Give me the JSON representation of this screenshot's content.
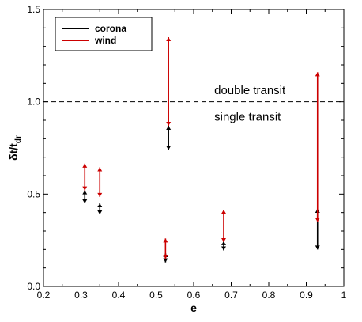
{
  "chart_data": {
    "type": "scatter",
    "title": "",
    "xlabel": "e",
    "ylabel_main": "δt/t",
    "ylabel_sub": "dr",
    "xlim": [
      0.2,
      1.0
    ],
    "ylim": [
      0.0,
      1.5
    ],
    "x_ticks": [
      0.2,
      0.3,
      0.4,
      0.5,
      0.6,
      0.7,
      0.8,
      0.9,
      1.0
    ],
    "x_tick_labels": [
      "0.2",
      "0.3",
      "0.4",
      "0.5",
      "0.6",
      "0.7",
      "0.8",
      "0.9",
      "1"
    ],
    "y_ticks": [
      0.0,
      0.5,
      1.0,
      1.5
    ],
    "y_tick_labels": [
      "0.0",
      "0.5",
      "1.0",
      "1.5"
    ],
    "grid": false,
    "legend_position": "top-left",
    "reference_line": {
      "y": 1.0,
      "style": "dashed"
    },
    "annotations": [
      {
        "text": "double transit",
        "x": 0.655,
        "y": 1.05
      },
      {
        "text": "single transit",
        "x": 0.655,
        "y": 0.95
      }
    ],
    "series": [
      {
        "name": "corona",
        "color": "#000000",
        "ranges": [
          {
            "x": 0.31,
            "low": 0.45,
            "high": 0.52
          },
          {
            "x": 0.35,
            "low": 0.39,
            "high": 0.45
          },
          {
            "x": 0.525,
            "low": 0.13,
            "high": 0.18
          },
          {
            "x": 0.533,
            "low": 0.74,
            "high": 0.87
          },
          {
            "x": 0.68,
            "low": 0.195,
            "high": 0.245
          },
          {
            "x": 0.93,
            "low": 0.2,
            "high": 0.42
          }
        ]
      },
      {
        "name": "wind",
        "color": "#cc0000",
        "ranges": [
          {
            "x": 0.31,
            "low": 0.52,
            "high": 0.665
          },
          {
            "x": 0.35,
            "low": 0.485,
            "high": 0.645
          },
          {
            "x": 0.525,
            "low": 0.15,
            "high": 0.26
          },
          {
            "x": 0.533,
            "low": 0.87,
            "high": 1.35
          },
          {
            "x": 0.68,
            "low": 0.24,
            "high": 0.415
          },
          {
            "x": 0.93,
            "low": 0.35,
            "high": 1.16
          }
        ]
      }
    ]
  }
}
